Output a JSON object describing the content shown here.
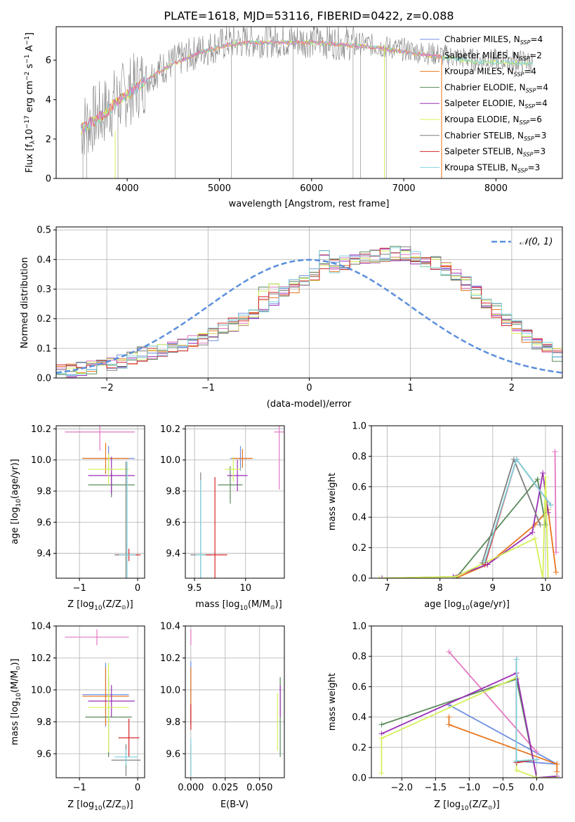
{
  "title": "PLATE=1618, MJD=53116, FIBERID=0422, z=0.088",
  "colors": {
    "Chabrier MILES": "#6f8fe0",
    "Salpeter MILES": "#e377c2",
    "Kroupa MILES": "#e6761f",
    "Chabrier ELODIE": "#5a8a5a",
    "Salpeter ELODIE": "#9a2fb5",
    "Kroupa ELODIE": "#d4f05a",
    "Chabrier STELIB": "#7f7f7f",
    "Salpeter STELIB": "#d62728",
    "Kroupa STELIB": "#80d6e0",
    "gaussian": "#5b8fdc",
    "grid": "#b0b0b0"
  },
  "chart_data": [
    {
      "type": "line",
      "id": "spectrum",
      "xlabel": "wavelength [Angstrom, rest frame]",
      "ylabel_parts": [
        "Flux [f",
        "λ",
        "10",
        "−17",
        " erg cm",
        "−2",
        " s",
        "−1",
        " A",
        "−1",
        "]"
      ],
      "xlim": [
        3230,
        8720
      ],
      "ylim": [
        0,
        7.7
      ],
      "xticks": [
        4000,
        5000,
        6000,
        7000,
        8000
      ],
      "yticks": [
        0,
        2,
        4,
        6
      ],
      "grid": false,
      "legend_position": "right",
      "series": [
        {
          "name_main": "Chabrier MILES, N",
          "name_sub": "SSP",
          "name_tail": "=4"
        },
        {
          "name_main": "Salpeter MILES, N",
          "name_sub": "SSP",
          "name_tail": "=2"
        },
        {
          "name_main": "Kroupa MILES, N",
          "name_sub": "SSP",
          "name_tail": "=4"
        },
        {
          "name_main": "Chabrier ELODIE, N",
          "name_sub": "SSP",
          "name_tail": "=4"
        },
        {
          "name_main": "Salpeter ELODIE, N",
          "name_sub": "SSP",
          "name_tail": "=4"
        },
        {
          "name_main": "Kroupa ELODIE, N",
          "name_sub": "SSP",
          "name_tail": "=6"
        },
        {
          "name_main": "Chabrier STELIB, N",
          "name_sub": "SSP",
          "name_tail": "=3"
        },
        {
          "name_main": "Salpeter STELIB, N",
          "name_sub": "SSP",
          "name_tail": "=3"
        },
        {
          "name_main": "Kroupa STELIB, N",
          "name_sub": "SSP",
          "name_tail": "=3"
        }
      ],
      "continuum": {
        "x": [
          3500,
          3700,
          3900,
          4100,
          4300,
          4500,
          4800,
          5100,
          5400,
          5700,
          6000,
          6300,
          6600,
          6900,
          7200,
          7500,
          7800,
          8100,
          8400
        ],
        "y": [
          2.6,
          3.2,
          4.0,
          4.7,
          5.4,
          5.9,
          6.5,
          6.9,
          7.0,
          7.0,
          7.0,
          6.9,
          6.8,
          6.6,
          6.4,
          6.2,
          6.0,
          6.0,
          5.9
        ]
      }
    },
    {
      "type": "histogram",
      "id": "residuals",
      "xlabel": "(data-model)/error",
      "ylabel": "Normed distribution",
      "xlim": [
        -2.5,
        2.5
      ],
      "ylim": [
        0,
        0.51
      ],
      "xticks": [
        -2,
        -1,
        0,
        1,
        2
      ],
      "yticks": [
        0.0,
        0.1,
        0.2,
        0.3,
        0.4,
        0.5
      ],
      "grid": true,
      "legend": "𝒩(0, 1)",
      "legend_position": "top-right",
      "bin_width": 0.1,
      "bin_start": -2.5,
      "base_values": [
        0.02,
        0.025,
        0.03,
        0.035,
        0.04,
        0.045,
        0.055,
        0.065,
        0.08,
        0.085,
        0.09,
        0.1,
        0.11,
        0.12,
        0.135,
        0.15,
        0.165,
        0.18,
        0.2,
        0.22,
        0.24,
        0.26,
        0.285,
        0.31,
        0.33,
        0.35,
        0.365,
        0.38,
        0.39,
        0.4,
        0.405,
        0.41,
        0.415,
        0.42,
        0.42,
        0.41,
        0.4,
        0.39,
        0.37,
        0.35,
        0.32,
        0.29,
        0.26,
        0.23,
        0.2,
        0.17,
        0.145,
        0.12,
        0.1,
        0.08
      ]
    },
    {
      "type": "scatter",
      "id": "age-vs-Z",
      "ylabel_main": "age  [log",
      "ylabel_sub": "10",
      "ylabel_tail": "(age/yr)]",
      "xlabel_main": "Z [log",
      "xlabel_sub": "10",
      "xlabel_tail": "(Z/Z",
      "xlabel_end": ")]",
      "xlim": [
        -1.4,
        0.12
      ],
      "ylim": [
        9.24,
        10.22
      ],
      "xticks": [
        -1,
        0
      ],
      "yticks": [
        9.4,
        9.6,
        9.8,
        10.0,
        10.2
      ],
      "grid": true,
      "points": [
        {
          "series": "Chabrier MILES",
          "x": -0.5,
          "xerr": 0.45,
          "y": 10.01,
          "yerr": 0.08
        },
        {
          "series": "Salpeter MILES",
          "x": -0.65,
          "xerr": 0.6,
          "y": 10.18,
          "yerr": 0.12
        },
        {
          "series": "Kroupa MILES",
          "x": -0.55,
          "xerr": 0.4,
          "y": 10.01,
          "yerr": 0.1
        },
        {
          "series": "Chabrier ELODIE",
          "x": -0.45,
          "xerr": 0.4,
          "y": 9.84,
          "yerr": 0.08
        },
        {
          "series": "Salpeter ELODIE",
          "x": -0.45,
          "xerr": 0.4,
          "y": 9.9,
          "yerr": 0.12
        },
        {
          "series": "Kroupa ELODIE",
          "x": -0.5,
          "xerr": 0.35,
          "y": 9.94,
          "yerr": 0.1
        },
        {
          "series": "Chabrier STELIB",
          "x": -0.2,
          "xerr": 0.2,
          "y": 9.39,
          "yerr": 0.6
        },
        {
          "series": "Salpeter STELIB",
          "x": -0.15,
          "xerr": 0.2,
          "y": 9.39,
          "yerr": 0.04
        },
        {
          "series": "Kroupa STELIB",
          "x": -0.18,
          "xerr": 0.15,
          "y": 9.39,
          "yerr": 0.6
        }
      ]
    },
    {
      "type": "scatter",
      "id": "age-vs-mass",
      "xlabel_main": "mass [log",
      "xlabel_sub": "10",
      "xlabel_tail": "(M/M",
      "xlabel_end": ")]",
      "xlim": [
        9.41,
        10.38
      ],
      "ylim": [
        9.24,
        10.22
      ],
      "xticks": [
        9.5,
        10.0
      ],
      "yticks": [
        9.4,
        9.6,
        9.8,
        10.0,
        10.2
      ],
      "grid": true,
      "points": [
        {
          "series": "Chabrier MILES",
          "x": 9.95,
          "xerr": 0.1,
          "y": 10.01,
          "yerr": 0.08
        },
        {
          "series": "Salpeter MILES",
          "x": 10.33,
          "xerr": 0.05,
          "y": 10.18,
          "yerr": 0.37
        },
        {
          "series": "Kroupa MILES",
          "x": 9.97,
          "xerr": 0.1,
          "y": 10.01,
          "yerr": 0.06
        },
        {
          "series": "Chabrier ELODIE",
          "x": 9.85,
          "xerr": 0.12,
          "y": 9.84,
          "yerr": 0.12
        },
        {
          "series": "Salpeter ELODIE",
          "x": 9.92,
          "xerr": 0.1,
          "y": 9.9,
          "yerr": 0.1
        },
        {
          "series": "Kroupa ELODIE",
          "x": 9.88,
          "xerr": 0.08,
          "y": 9.94,
          "yerr": 0.08
        },
        {
          "series": "Chabrier STELIB",
          "x": 9.56,
          "xerr": 0.1,
          "y": 9.39,
          "yerr": 0.53
        },
        {
          "series": "Salpeter STELIB",
          "x": 9.7,
          "xerr": 0.12,
          "y": 9.39,
          "yerr": 0.5
        },
        {
          "series": "Kroupa STELIB",
          "x": 9.56,
          "xerr": 0.05,
          "y": 9.39,
          "yerr": 0.48
        }
      ]
    },
    {
      "type": "line",
      "id": "massweight-vs-age",
      "ylabel": "mass weight",
      "xlabel_main": "age  [log",
      "xlabel_sub": "10",
      "xlabel_tail": "(age/yr)]",
      "xlim": [
        6.7,
        10.32
      ],
      "ylim": [
        0,
        1.0
      ],
      "xticks": [
        7,
        8,
        9,
        10
      ],
      "yticks": [
        0.0,
        0.2,
        0.4,
        0.6,
        0.8,
        1.0
      ],
      "grid": true,
      "series": [
        {
          "name": "Chabrier MILES",
          "x": [
            8.85,
            9.45,
            10.1
          ],
          "y": [
            0.1,
            0.78,
            0.48
          ]
        },
        {
          "name": "Salpeter MILES",
          "x": [
            10.18,
            10.2
          ],
          "y": [
            0.83,
            0.17
          ]
        },
        {
          "name": "Kroupa MILES",
          "x": [
            8.3,
            8.9,
            9.8,
            10.05,
            10.2
          ],
          "y": [
            0.0,
            0.09,
            0.35,
            0.45,
            0.04
          ]
        },
        {
          "name": "Chabrier ELODIE",
          "x": [
            8.3,
            9.85,
            10.0
          ],
          "y": [
            0.0,
            0.65,
            0.35
          ]
        },
        {
          "name": "Salpeter ELODIE",
          "x": [
            6.9,
            8.25,
            8.9,
            9.75,
            9.95,
            10.05
          ],
          "y": [
            0.0,
            0.01,
            0.09,
            0.3,
            0.69,
            0.43
          ]
        },
        {
          "name": "Kroupa ELODIE",
          "x": [
            6.85,
            8.3,
            9.8,
            9.95,
            10.0,
            10.05
          ],
          "y": [
            0.0,
            0.01,
            0.26,
            0.0,
            0.66,
            0.0
          ]
        },
        {
          "name": "Chabrier STELIB",
          "x": [
            8.8,
            9.4,
            9.9
          ],
          "y": [
            0.1,
            0.78,
            0.35
          ]
        },
        {
          "name": "Salpeter STELIB",
          "x": [
            8.85,
            9.45,
            10.1
          ],
          "y": [
            0.09,
            0.78,
            0.48
          ]
        },
        {
          "name": "Kroupa STELIB",
          "x": [
            8.85,
            9.45,
            10.1
          ],
          "y": [
            0.11,
            0.78,
            0.48
          ]
        }
      ]
    },
    {
      "type": "scatter",
      "id": "mass-vs-Z",
      "ylabel_main": "mass [log",
      "ylabel_sub": "10",
      "ylabel_tail": "(M/M",
      "ylabel_end": ")]",
      "xlabel_main": "Z [log",
      "xlabel_sub": "10",
      "xlabel_tail": "(Z/Z",
      "xlabel_end": ")]",
      "xlim": [
        -1.4,
        0.12
      ],
      "ylim": [
        9.45,
        10.4
      ],
      "xticks": [
        -1,
        0
      ],
      "yticks": [
        9.6,
        9.8,
        10.0,
        10.2,
        10.4
      ],
      "grid": true,
      "points": [
        {
          "series": "Chabrier MILES",
          "x": -0.55,
          "xerr": 0.4,
          "y": 9.97,
          "yerr": 0.2
        },
        {
          "series": "Salpeter MILES",
          "x": -0.7,
          "xerr": 0.55,
          "y": 10.33,
          "yerr": 0.05
        },
        {
          "series": "Kroupa MILES",
          "x": -0.55,
          "xerr": 0.4,
          "y": 9.96,
          "yerr": 0.18
        },
        {
          "series": "Chabrier ELODIE",
          "x": -0.5,
          "xerr": 0.4,
          "y": 9.83,
          "yerr": 0.25
        },
        {
          "series": "Salpeter ELODIE",
          "x": -0.45,
          "xerr": 0.4,
          "y": 9.93,
          "yerr": 0.1
        },
        {
          "series": "Kroupa ELODIE",
          "x": -0.5,
          "xerr": 0.35,
          "y": 9.89,
          "yerr": 0.28
        },
        {
          "series": "Chabrier STELIB",
          "x": -0.2,
          "xerr": 0.25,
          "y": 9.56,
          "yerr": 0.1
        },
        {
          "series": "Salpeter STELIB",
          "x": -0.15,
          "xerr": 0.18,
          "y": 9.7,
          "yerr": 0.12
        },
        {
          "series": "Kroupa STELIB",
          "x": -0.2,
          "xerr": 0.2,
          "y": 9.58,
          "yerr": 0.05
        }
      ]
    },
    {
      "type": "scatter",
      "id": "mass-vs-EBV",
      "xlabel": "E(B-V)",
      "xlim": [
        -0.004,
        0.068
      ],
      "ylim": [
        9.45,
        10.4
      ],
      "xticks": [
        0.0,
        0.025,
        0.05
      ],
      "xticklabels": [
        "0.000",
        "0.025",
        "0.050"
      ],
      "yticks": [
        9.6,
        9.8,
        10.0,
        10.2,
        10.4
      ],
      "grid": true,
      "points": [
        {
          "series": "Chabrier MILES",
          "x": 0.0,
          "y": 9.98,
          "yerr": 0.2
        },
        {
          "series": "Salpeter MILES",
          "x": 0.0,
          "y": 10.33,
          "yerr": 0.05
        },
        {
          "series": "Kroupa MILES",
          "x": 0.0,
          "y": 9.96,
          "yerr": 0.18
        },
        {
          "series": "Chabrier ELODIE",
          "x": 0.065,
          "y": 9.83,
          "yerr": 0.25
        },
        {
          "series": "Salpeter ELODIE",
          "x": 0.065,
          "y": 9.93,
          "yerr": 0.1
        },
        {
          "series": "Kroupa ELODIE",
          "x": 0.063,
          "y": 9.8,
          "yerr": 0.18
        },
        {
          "series": "Chabrier STELIB",
          "x": 0.0,
          "y": 9.56,
          "yerr": 0.1
        },
        {
          "series": "Salpeter STELIB",
          "x": 0.0,
          "y": 9.83,
          "yerr": 0.08
        },
        {
          "series": "Kroupa STELIB",
          "x": 0.0,
          "y": 9.58,
          "yerr": 0.12
        }
      ]
    },
    {
      "type": "line",
      "id": "massweight-vs-Z",
      "ylabel": "mass weight",
      "xlabel_main": "Z [log",
      "xlabel_sub": "10",
      "xlabel_tail": "(Z/Z",
      "xlabel_end": ")]",
      "xlim": [
        -2.45,
        0.38
      ],
      "ylim": [
        0,
        1.0
      ],
      "xticks": [
        -2.0,
        -1.5,
        -1.0,
        -0.5,
        0.0
      ],
      "xticklabels": [
        "−2.0",
        "−1.5",
        "−1.0",
        "−0.5",
        "0.0"
      ],
      "yticks": [
        0.0,
        0.2,
        0.4,
        0.6,
        0.8,
        1.0
      ],
      "grid": true,
      "series": [
        {
          "name": "Chabrier MILES",
          "x": [
            -1.3,
            0.3,
            -0.3,
            -0.3
          ],
          "y": [
            0.48,
            0.09,
            0.11,
            0.78
          ]
        },
        {
          "name": "Salpeter MILES",
          "x": [
            -1.3,
            0.0
          ],
          "y": [
            0.83,
            0.17
          ]
        },
        {
          "name": "Kroupa MILES",
          "x": [
            -1.3,
            -1.3,
            0.3,
            0.3
          ],
          "y": [
            0.4,
            0.35,
            0.09,
            0.04
          ]
        },
        {
          "name": "Chabrier ELODIE",
          "x": [
            -2.3,
            -0.3,
            0.0
          ],
          "y": [
            0.35,
            0.65,
            0.0
          ]
        },
        {
          "name": "Salpeter ELODIE",
          "x": [
            -2.3,
            -0.3,
            0.0,
            0.3
          ],
          "y": [
            0.29,
            0.69,
            0.0,
            0.01
          ]
        },
        {
          "name": "Kroupa ELODIE",
          "x": [
            -2.3,
            -2.3,
            -0.3,
            -0.3,
            0.0,
            0.3
          ],
          "y": [
            0.03,
            0.26,
            0.66,
            0.05,
            0.0,
            0.0
          ]
        },
        {
          "name": "Chabrier STELIB",
          "x": [
            -0.3,
            -0.3,
            0.0
          ],
          "y": [
            0.78,
            0.1,
            0.12
          ]
        },
        {
          "name": "Salpeter STELIB",
          "x": [
            -0.3,
            -0.3,
            0.0
          ],
          "y": [
            0.78,
            0.1,
            0.12
          ]
        },
        {
          "name": "Kroupa STELIB",
          "x": [
            -0.3,
            -0.3,
            0.0
          ],
          "y": [
            0.78,
            0.11,
            0.12
          ]
        }
      ]
    }
  ]
}
